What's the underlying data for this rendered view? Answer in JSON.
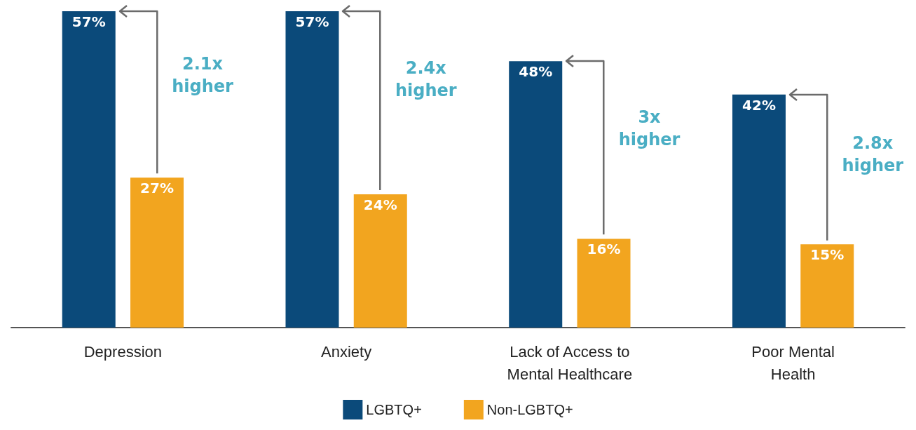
{
  "chart_data": {
    "type": "bar",
    "categories": [
      "Depression",
      "Anxiety",
      "Lack of Access to\nMental Healthcare",
      "Poor Mental\nHealth"
    ],
    "series": [
      {
        "name": "LGBTQ+",
        "color": "#0b4a7a",
        "values": [
          57,
          57,
          48,
          42
        ],
        "value_labels": [
          "57%",
          "57%",
          "48%",
          "42%"
        ]
      },
      {
        "name": "Non-LGBTQ+",
        "color": "#f2a51f",
        "values": [
          27,
          24,
          16,
          15
        ],
        "value_labels": [
          "27%",
          "24%",
          "16%",
          "15%"
        ]
      }
    ],
    "legend": "bottom",
    "grid": false,
    "annotations": [
      "2.1x\nhigher",
      "2.4x\nhigher",
      "3x\nhigher",
      "2.8x\nhigher"
    ]
  }
}
